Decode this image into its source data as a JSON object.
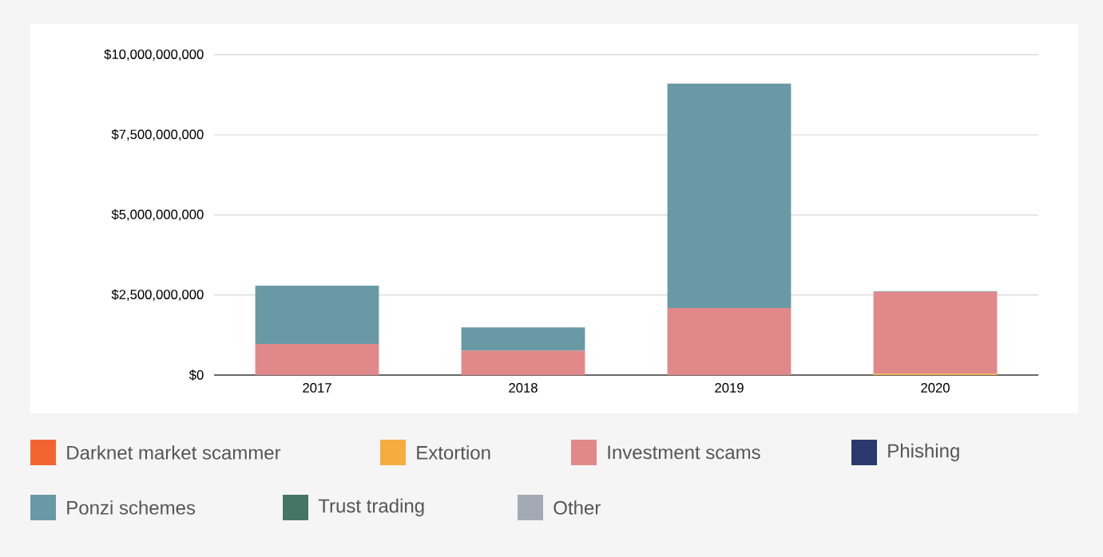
{
  "chart_data": {
    "type": "bar",
    "stacked": true,
    "categories": [
      "2017",
      "2018",
      "2019",
      "2020"
    ],
    "series": [
      {
        "name": "Darknet market scammer",
        "color": "#f26530",
        "values": [
          0,
          0,
          0,
          0
        ]
      },
      {
        "name": "Extortion",
        "color": "#f5ac40",
        "values": [
          0,
          0,
          0,
          40000000
        ]
      },
      {
        "name": "Investment scams",
        "color": "#e1888a",
        "values": [
          970000000,
          760000000,
          2090000000,
          2550000000
        ]
      },
      {
        "name": "Phishing",
        "color": "#2a3a6e",
        "values": [
          0,
          0,
          0,
          0
        ]
      },
      {
        "name": "Ponzi schemes",
        "color": "#6a99a6",
        "values": [
          1820000000,
          730000000,
          7010000000,
          0
        ]
      },
      {
        "name": "Trust trading",
        "color": "#467565",
        "values": [
          0,
          0,
          0,
          0
        ]
      },
      {
        "name": "Other",
        "color": "#a4aab4",
        "values": [
          0,
          0,
          0,
          30000000
        ]
      }
    ],
    "ylim": [
      0,
      10000000000
    ],
    "yticks": [
      {
        "value": 0,
        "label": "$0"
      },
      {
        "value": 2500000000,
        "label": "$2,500,000,000"
      },
      {
        "value": 5000000000,
        "label": "$5,000,000,000"
      },
      {
        "value": 7500000000,
        "label": "$7,500,000,000"
      },
      {
        "value": 10000000000,
        "label": "$10,000,000,000"
      }
    ],
    "grid": "y",
    "legend": "bottom"
  }
}
